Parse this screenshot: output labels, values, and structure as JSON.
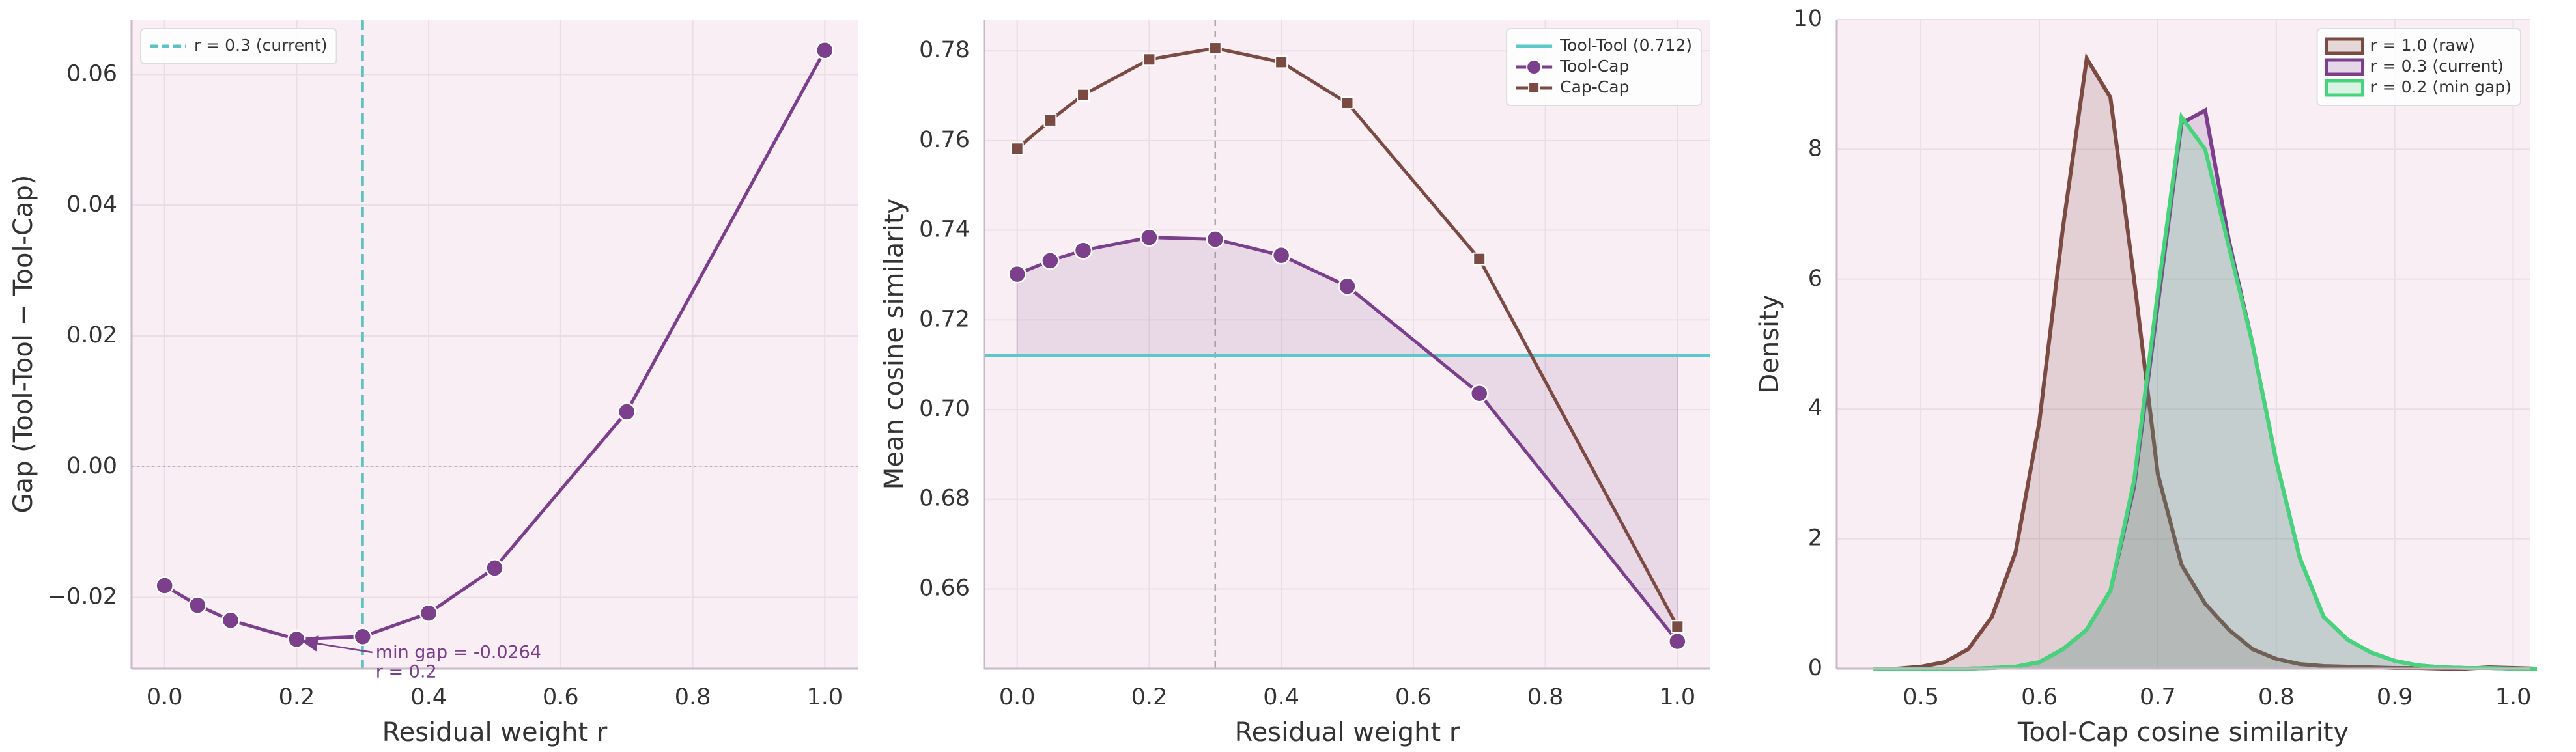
{
  "chart_data": [
    {
      "type": "line",
      "x": [
        0.0,
        0.05,
        0.1,
        0.2,
        0.3,
        0.4,
        0.5,
        0.7,
        1.0
      ],
      "values": [
        -0.0182,
        -0.0212,
        -0.0235,
        -0.0264,
        -0.026,
        -0.0224,
        -0.0155,
        0.0084,
        0.0637
      ],
      "color": "#7b3f8c",
      "marker": "circle",
      "xlabel": "Residual weight r",
      "ylabel": "Gap (Tool-Tool − Tool-Cap)",
      "xlim": [
        -0.05,
        1.05
      ],
      "ylim": [
        -0.0309,
        0.0684
      ],
      "xticks": [
        {
          "value": 0.0,
          "label": "0.0"
        },
        0.2,
        0.4,
        0.6,
        0.8,
        {
          "value": 1.0,
          "label": "1.0"
        }
      ],
      "yticks": [
        {
          "value": -0.02,
          "label": "−0.02"
        },
        {
          "value": 0.0,
          "label": "0.00"
        },
        0.02,
        0.04,
        0.06
      ],
      "grid": true,
      "hline": 0,
      "vline": {
        "x": 0.3,
        "label": "r = 0.3 (current)",
        "color": "#5bc4c0"
      },
      "legend": "upper left",
      "annotation": {
        "text": [
          "min gap = -0.0264",
          "r = 0.2"
        ],
        "x": 0.2,
        "y": -0.0264
      }
    },
    {
      "type": "line",
      "x": [
        0.0,
        0.05,
        0.1,
        0.2,
        0.3,
        0.4,
        0.5,
        0.7,
        1.0
      ],
      "series": [
        {
          "name": "Tool-Cap",
          "color": "#7b3f8c",
          "marker": "circle",
          "values": [
            0.7302,
            0.7332,
            0.7355,
            0.7384,
            0.738,
            0.7344,
            0.7275,
            0.7036,
            0.6483
          ]
        },
        {
          "name": "Cap-Cap",
          "color": "#7b4a42",
          "marker": "square",
          "values": [
            0.7582,
            0.7645,
            0.7702,
            0.7781,
            0.7806,
            0.7775,
            0.7684,
            0.7336,
            0.6516
          ]
        }
      ],
      "xlabel": "Residual weight r",
      "ylabel": "Mean cosine similarity",
      "xlim": [
        -0.05,
        1.05
      ],
      "ylim": [
        0.6422,
        0.787
      ],
      "xticks": [
        {
          "value": 0.0,
          "label": "0.0"
        },
        0.2,
        0.4,
        0.6,
        0.8,
        {
          "value": 1.0,
          "label": "1.0"
        }
      ],
      "yticks": [
        0.66,
        0.68,
        {
          "value": 0.7,
          "label": "0.70"
        },
        0.72,
        0.74,
        0.76,
        0.78
      ],
      "grid": true,
      "hline": {
        "name": "Tool-Tool (0.712)",
        "value": 0.712,
        "color": "#5cc8cc"
      },
      "vline": {
        "x": 0.3,
        "color": "#aaaaaa"
      },
      "fill": true,
      "legend": "upper right"
    },
    {
      "type": "area",
      "x": [
        0.46,
        0.48,
        0.5,
        0.52,
        0.54,
        0.56,
        0.58,
        0.6,
        0.62,
        0.64,
        0.66,
        0.68,
        0.7,
        0.72,
        0.74,
        0.76,
        0.78,
        0.8,
        0.82,
        0.84,
        0.86,
        0.88,
        0.9,
        0.92,
        0.94,
        0.96,
        0.98,
        1.0,
        1.02
      ],
      "series": [
        {
          "name": "r = 1.0 (raw)",
          "color": "#7b4a42",
          "values": [
            0,
            0,
            0.03,
            0.1,
            0.3,
            0.8,
            1.8,
            3.8,
            6.8,
            9.4,
            8.8,
            6.0,
            3.0,
            1.6,
            1.0,
            0.6,
            0.3,
            0.15,
            0.07,
            0.04,
            0.03,
            0.02,
            0.01,
            0.01,
            0,
            0,
            0.02,
            0.01,
            0
          ]
        },
        {
          "name": "r = 0.3 (current)",
          "color": "#7b3f8c",
          "values": [
            0,
            0,
            0,
            0,
            0,
            0.01,
            0.03,
            0.1,
            0.3,
            0.6,
            1.2,
            2.8,
            5.6,
            8.4,
            8.6,
            6.6,
            5.0,
            3.2,
            1.7,
            0.8,
            0.45,
            0.25,
            0.12,
            0.05,
            0.02,
            0.01,
            0.01,
            0,
            0
          ]
        },
        {
          "name": "r = 0.2 (min gap)",
          "color": "#45d47c",
          "values": [
            0,
            0,
            0,
            0,
            0,
            0.01,
            0.03,
            0.1,
            0.3,
            0.6,
            1.2,
            2.9,
            5.8,
            8.5,
            8.0,
            6.5,
            5.0,
            3.2,
            1.7,
            0.8,
            0.45,
            0.25,
            0.12,
            0.05,
            0.02,
            0.01,
            0.01,
            0,
            0
          ]
        }
      ],
      "xlabel": "Tool-Cap cosine similarity",
      "ylabel": "Density",
      "xlim": [
        0.429,
        1.014
      ],
      "ylim": [
        0,
        10
      ],
      "xticks": [
        0.5,
        0.6,
        0.7,
        0.8,
        0.9,
        {
          "value": 1.0,
          "label": "1.0"
        }
      ],
      "yticks": [
        0,
        2,
        4,
        6,
        8,
        10
      ],
      "grid": true,
      "legend": "upper right"
    }
  ]
}
